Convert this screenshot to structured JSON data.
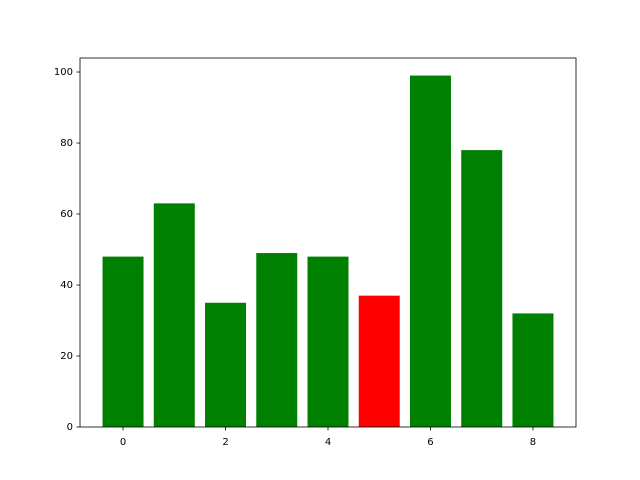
{
  "chart_data": {
    "type": "bar",
    "x": [
      0,
      1,
      2,
      3,
      4,
      5,
      6,
      7,
      8
    ],
    "values": [
      48,
      63,
      35,
      49,
      48,
      37,
      99,
      78,
      32
    ],
    "colors": [
      "#008000",
      "#008000",
      "#008000",
      "#008000",
      "#008000",
      "#ff0000",
      "#008000",
      "#008000",
      "#008000"
    ],
    "xlim": [
      -0.84,
      8.84
    ],
    "xticks": [
      0,
      2,
      4,
      6,
      8
    ],
    "ylim": [
      0,
      103.95
    ],
    "yticks": [
      0,
      20,
      40,
      60,
      80,
      100
    ],
    "bar_width": 0.8
  }
}
